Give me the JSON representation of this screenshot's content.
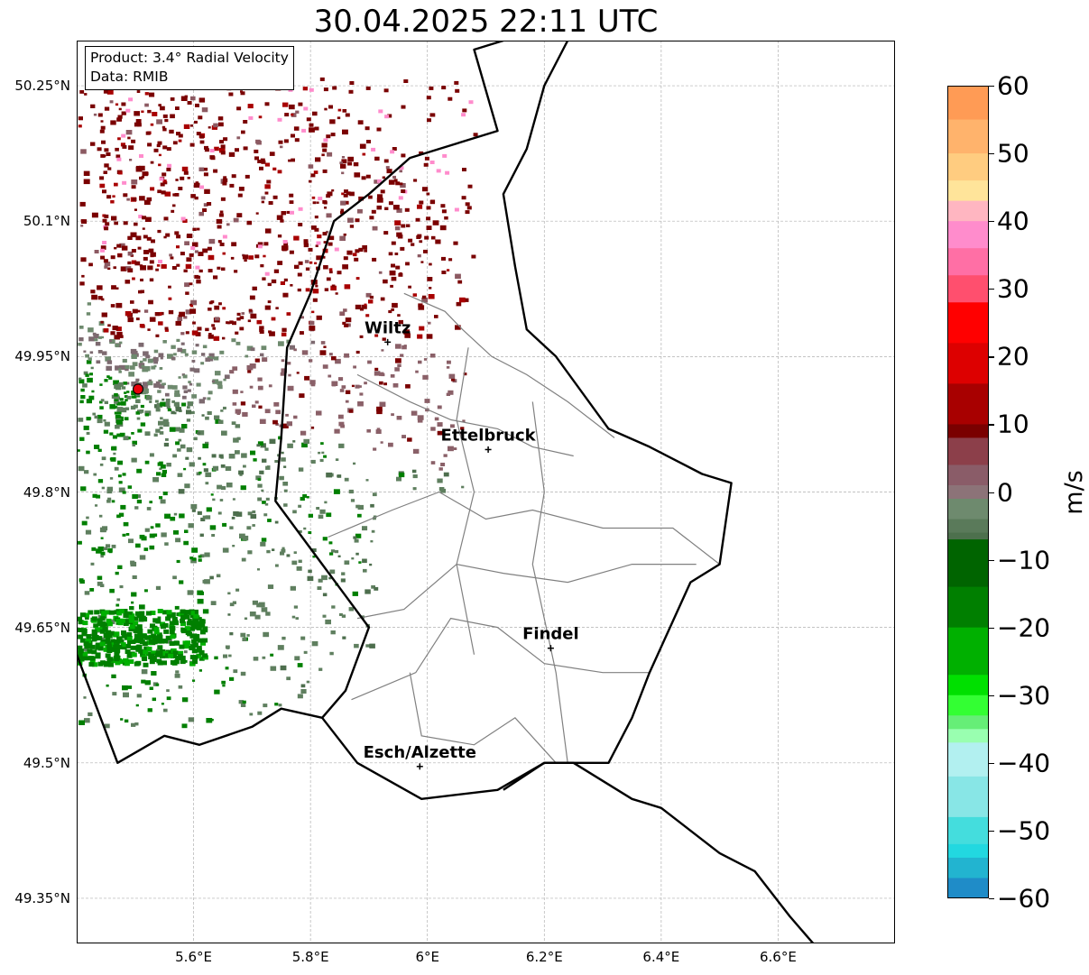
{
  "title": "30.04.2025 22:11 UTC",
  "info_box": {
    "product": "Product: 3.4° Radial Velocity",
    "data_source": "Data: RMIB"
  },
  "axes": {
    "lat_ticks": [
      "50.25°N",
      "50.1°N",
      "49.95°N",
      "49.8°N",
      "49.65°N",
      "49.5°N",
      "49.35°N"
    ],
    "lon_ticks": [
      "5.6°E",
      "5.8°E",
      "6°E",
      "6.2°E",
      "6.4°E",
      "6.6°E"
    ],
    "lat_range": [
      49.3,
      50.3
    ],
    "lon_range": [
      5.4,
      6.8
    ],
    "grid": true
  },
  "cities": [
    {
      "name": "Wiltz",
      "lon": 5.932,
      "lat": 49.966
    },
    {
      "name": "Ettelbruck",
      "lon": 6.104,
      "lat": 49.847
    },
    {
      "name": "Findel",
      "lon": 6.211,
      "lat": 49.627
    },
    {
      "name": "Esch/Alzette",
      "lon": 5.987,
      "lat": 49.496
    }
  ],
  "radar_site": {
    "lon": 5.505,
    "lat": 49.914,
    "color": "#e8000b"
  },
  "colorbar": {
    "label": "m/s",
    "min": -60,
    "max": 60,
    "ticks": [
      "60",
      "50",
      "40",
      "30",
      "20",
      "10",
      "0",
      "−10",
      "−20",
      "−30",
      "−40",
      "−50",
      "−60"
    ],
    "stops": [
      {
        "v": 60,
        "c": "#ff9b55"
      },
      {
        "v": 55,
        "c": "#ffb36c"
      },
      {
        "v": 50,
        "c": "#ffcc80"
      },
      {
        "v": 46,
        "c": "#ffe49a"
      },
      {
        "v": 43,
        "c": "#ffb6c1"
      },
      {
        "v": 40,
        "c": "#ff8ccc"
      },
      {
        "v": 36,
        "c": "#ff6fa5"
      },
      {
        "v": 32,
        "c": "#ff4f6e"
      },
      {
        "v": 28,
        "c": "#ff0000"
      },
      {
        "v": 22,
        "c": "#dd0000"
      },
      {
        "v": 16,
        "c": "#a80000"
      },
      {
        "v": 10,
        "c": "#7a0000"
      },
      {
        "v": 8,
        "c": "#8c3f4a"
      },
      {
        "v": 4,
        "c": "#8a5c68"
      },
      {
        "v": 1,
        "c": "#8c7378"
      },
      {
        "v": -1,
        "c": "#6e8a6e"
      },
      {
        "v": -4,
        "c": "#5a7a5a"
      },
      {
        "v": -6,
        "c": "#4d704d"
      },
      {
        "v": -7,
        "c": "#006400"
      },
      {
        "v": -14,
        "c": "#007f00"
      },
      {
        "v": -20,
        "c": "#00b000"
      },
      {
        "v": -27,
        "c": "#00e000"
      },
      {
        "v": -30,
        "c": "#33ff33"
      },
      {
        "v": -33,
        "c": "#66ee77"
      },
      {
        "v": -35,
        "c": "#99ffb0"
      },
      {
        "v": -37,
        "c": "#b2f0f0"
      },
      {
        "v": -42,
        "c": "#88e6e6"
      },
      {
        "v": -48,
        "c": "#44dddd"
      },
      {
        "v": -52,
        "c": "#22d8e0"
      },
      {
        "v": -54,
        "c": "#22b4d0"
      },
      {
        "v": -57,
        "c": "#1f8cc8"
      },
      {
        "v": -60,
        "c": "#1f77b4"
      }
    ]
  },
  "boundaries": {
    "national": [
      [
        [
          6.13,
          50.3
        ],
        [
          6.08,
          50.29
        ],
        [
          6.12,
          50.2
        ],
        [
          6.02,
          50.18
        ],
        [
          5.97,
          50.17
        ],
        [
          5.9,
          50.13
        ],
        [
          5.84,
          50.1
        ],
        [
          5.8,
          50.02
        ],
        [
          5.76,
          49.96
        ],
        [
          5.75,
          49.86
        ],
        [
          5.74,
          49.79
        ],
        [
          5.82,
          49.72
        ],
        [
          5.9,
          49.65
        ],
        [
          5.86,
          49.58
        ],
        [
          5.82,
          49.55
        ],
        [
          5.88,
          49.5
        ],
        [
          5.99,
          49.46
        ],
        [
          6.12,
          49.47
        ],
        [
          6.2,
          49.5
        ],
        [
          6.25,
          49.5
        ],
        [
          6.35,
          49.46
        ],
        [
          6.4,
          49.45
        ],
        [
          6.5,
          49.4
        ],
        [
          6.56,
          49.38
        ],
        [
          6.62,
          49.33
        ],
        [
          6.7,
          49.27
        ]
      ],
      [
        [
          6.13,
          49.47
        ],
        [
          6.2,
          49.5
        ],
        [
          6.31,
          49.5
        ],
        [
          6.35,
          49.55
        ],
        [
          6.38,
          49.6
        ],
        [
          6.45,
          49.7
        ],
        [
          6.5,
          49.72
        ],
        [
          6.52,
          49.81
        ],
        [
          6.47,
          49.82
        ],
        [
          6.38,
          49.85
        ],
        [
          6.31,
          49.87
        ],
        [
          6.22,
          49.95
        ],
        [
          6.17,
          49.98
        ],
        [
          6.15,
          50.05
        ],
        [
          6.13,
          50.13
        ],
        [
          6.17,
          50.18
        ],
        [
          6.2,
          50.25
        ],
        [
          6.24,
          50.3
        ]
      ],
      [
        [
          5.4,
          49.62
        ],
        [
          5.47,
          49.5
        ],
        [
          5.55,
          49.53
        ],
        [
          5.61,
          49.52
        ],
        [
          5.7,
          49.54
        ],
        [
          5.75,
          49.56
        ],
        [
          5.82,
          49.55
        ]
      ]
    ],
    "regional": [
      [
        [
          5.96,
          50.02
        ],
        [
          6.03,
          50.0
        ],
        [
          6.06,
          49.98
        ],
        [
          6.11,
          49.95
        ],
        [
          6.17,
          49.93
        ],
        [
          6.24,
          49.9
        ],
        [
          6.32,
          49.86
        ]
      ],
      [
        [
          5.88,
          49.93
        ],
        [
          5.97,
          49.9
        ],
        [
          6.04,
          49.88
        ],
        [
          6.12,
          49.87
        ],
        [
          6.18,
          49.85
        ],
        [
          6.25,
          49.84
        ]
      ],
      [
        [
          5.83,
          49.75
        ],
        [
          5.94,
          49.78
        ],
        [
          6.02,
          49.8
        ],
        [
          6.1,
          49.77
        ],
        [
          6.18,
          49.78
        ],
        [
          6.3,
          49.76
        ],
        [
          6.42,
          49.76
        ],
        [
          6.5,
          49.72
        ]
      ],
      [
        [
          5.88,
          49.66
        ],
        [
          5.96,
          49.67
        ],
        [
          6.05,
          49.72
        ],
        [
          6.13,
          49.71
        ],
        [
          6.24,
          49.7
        ],
        [
          6.35,
          49.72
        ],
        [
          6.46,
          49.72
        ]
      ],
      [
        [
          5.87,
          49.57
        ],
        [
          5.98,
          49.6
        ],
        [
          6.04,
          49.66
        ],
        [
          6.12,
          49.65
        ],
        [
          6.2,
          49.61
        ],
        [
          6.3,
          49.6
        ],
        [
          6.38,
          49.6
        ]
      ],
      [
        [
          5.97,
          49.6
        ],
        [
          5.99,
          49.53
        ],
        [
          6.08,
          49.52
        ],
        [
          6.15,
          49.55
        ],
        [
          6.22,
          49.5
        ]
      ],
      [
        [
          6.07,
          49.96
        ],
        [
          6.05,
          49.88
        ],
        [
          6.08,
          49.8
        ],
        [
          6.05,
          49.72
        ],
        [
          6.08,
          49.62
        ]
      ],
      [
        [
          6.18,
          49.9
        ],
        [
          6.2,
          49.8
        ],
        [
          6.18,
          49.72
        ],
        [
          6.22,
          49.6
        ],
        [
          6.24,
          49.5
        ]
      ]
    ]
  }
}
